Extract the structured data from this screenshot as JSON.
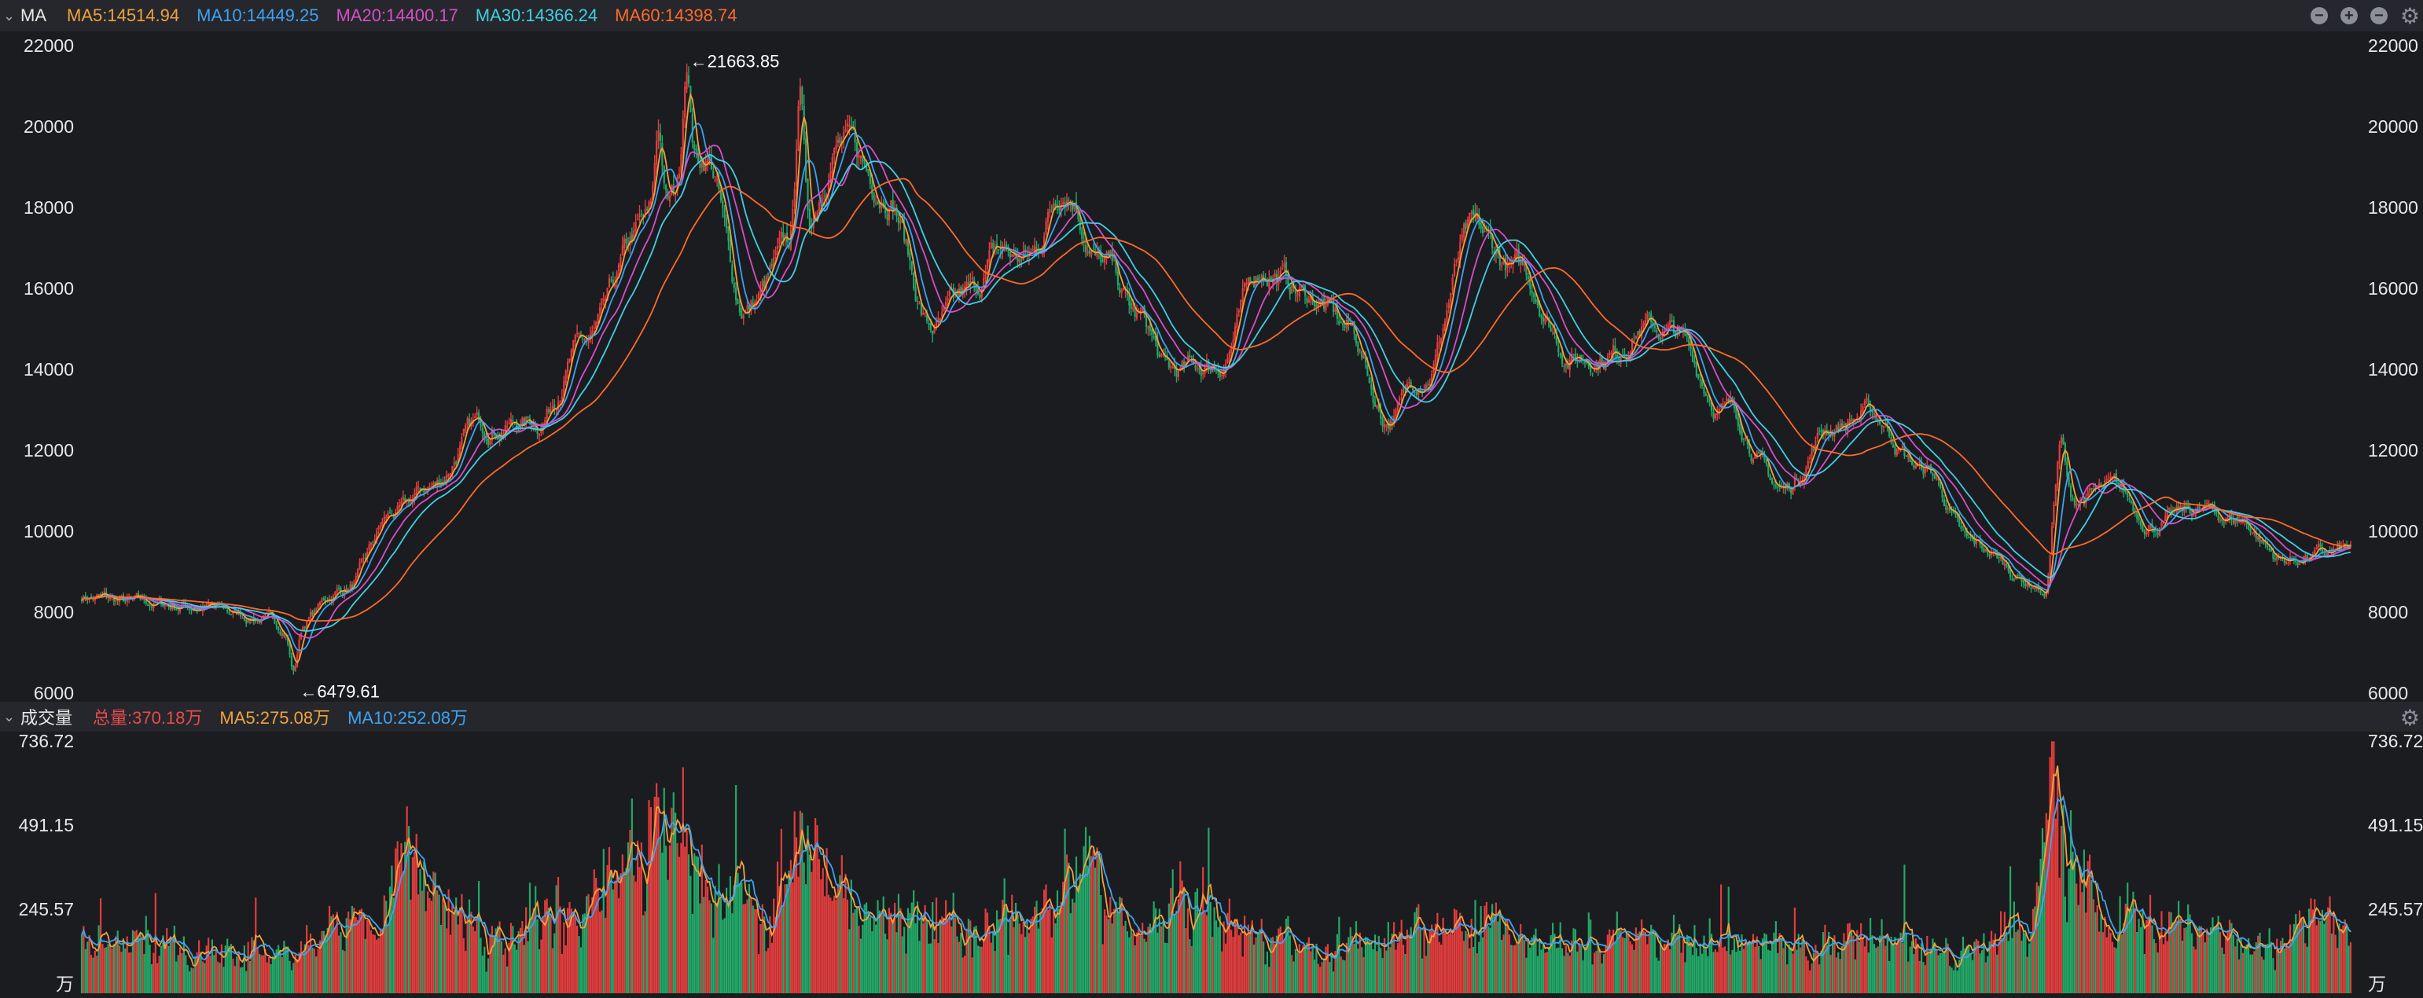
{
  "price_panel": {
    "title": "MA",
    "indicators": [
      {
        "label": "MA5:14514.94",
        "color": "#f0a23e"
      },
      {
        "label": "MA10:14449.25",
        "color": "#3ea2f0"
      },
      {
        "label": "MA20:14400.17",
        "color": "#d64fc4"
      },
      {
        "label": "MA30:14366.24",
        "color": "#3fd0e2"
      },
      {
        "label": "MA60:14398.74",
        "color": "#ff6a2a"
      }
    ],
    "max_label": "←21663.85",
    "min_label": "←6479.61"
  },
  "volume_panel": {
    "title": "成交量",
    "indicators": [
      {
        "label": "总量:370.18万",
        "color": "#e84b4b"
      },
      {
        "label": "MA5:275.08万",
        "color": "#f0a23e"
      },
      {
        "label": "MA10:252.08万",
        "color": "#3ea2f0"
      }
    ],
    "unit_label": "万"
  },
  "colors": {
    "up": "#e23d3d",
    "down": "#23a868",
    "axis_text": "#e8e8e8",
    "background": "#1b1c20",
    "header": "#25272c"
  },
  "chart_data": [
    {
      "type": "candlestick",
      "title": "MA",
      "y_ticks": [
        22000,
        20000,
        18000,
        16000,
        14000,
        12000,
        10000,
        8000,
        6000
      ],
      "ylim": [
        6000,
        22000
      ],
      "grid": false,
      "extremes": {
        "max": 21663.85,
        "min": 6479.61
      },
      "trend_anchors": [
        {
          "i": 0,
          "v": 8400
        },
        {
          "i": 30,
          "v": 8200
        },
        {
          "i": 60,
          "v": 8150
        },
        {
          "i": 90,
          "v": 7900
        },
        {
          "i": 110,
          "v": 7600
        },
        {
          "i": 140,
          "v": 8600
        },
        {
          "i": 165,
          "v": 10400
        },
        {
          "i": 185,
          "v": 11100
        },
        {
          "i": 210,
          "v": 12600
        },
        {
          "i": 240,
          "v": 12700
        },
        {
          "i": 265,
          "v": 14600
        },
        {
          "i": 300,
          "v": 17600
        },
        {
          "i": 330,
          "v": 19300
        },
        {
          "i": 350,
          "v": 15500
        },
        {
          "i": 380,
          "v": 17200
        },
        {
          "i": 400,
          "v": 19600
        },
        {
          "i": 425,
          "v": 18500
        },
        {
          "i": 450,
          "v": 15000
        },
        {
          "i": 470,
          "v": 15800
        },
        {
          "i": 485,
          "v": 16900
        },
        {
          "i": 500,
          "v": 16700
        },
        {
          "i": 520,
          "v": 18600
        },
        {
          "i": 540,
          "v": 16600
        },
        {
          "i": 560,
          "v": 15200
        },
        {
          "i": 575,
          "v": 13900
        },
        {
          "i": 600,
          "v": 14100
        },
        {
          "i": 625,
          "v": 16500
        },
        {
          "i": 650,
          "v": 15800
        },
        {
          "i": 670,
          "v": 15000
        },
        {
          "i": 690,
          "v": 12800
        },
        {
          "i": 710,
          "v": 13900
        },
        {
          "i": 735,
          "v": 17300
        },
        {
          "i": 760,
          "v": 16400
        },
        {
          "i": 790,
          "v": 14300
        },
        {
          "i": 810,
          "v": 14400
        },
        {
          "i": 825,
          "v": 15100
        },
        {
          "i": 840,
          "v": 14900
        },
        {
          "i": 870,
          "v": 13000
        },
        {
          "i": 900,
          "v": 11000
        },
        {
          "i": 925,
          "v": 12600
        },
        {
          "i": 945,
          "v": 12900
        },
        {
          "i": 975,
          "v": 11500
        },
        {
          "i": 1000,
          "v": 9600
        },
        {
          "i": 1035,
          "v": 8700
        },
        {
          "i": 1045,
          "v": 10700
        },
        {
          "i": 1075,
          "v": 11000
        },
        {
          "i": 1095,
          "v": 10200
        },
        {
          "i": 1120,
          "v": 10500
        },
        {
          "i": 1140,
          "v": 10300
        },
        {
          "i": 1165,
          "v": 9300
        },
        {
          "i": 1185,
          "v": 9400
        },
        {
          "i": 1200,
          "v": 9550
        }
      ],
      "trend_spikes": [
        {
          "i": 305,
          "v": 20200
        },
        {
          "i": 320,
          "v": 21663.85
        },
        {
          "i": 380,
          "v": 21300
        },
        {
          "i": 112,
          "v": 6479.61
        },
        {
          "i": 1038,
          "v": 8300
        },
        {
          "i": 1047,
          "v": 12500
        }
      ]
    },
    {
      "type": "bar",
      "title": "成交量",
      "unit": "万",
      "y_ticks": [
        736.72,
        491.15,
        245.57
      ],
      "ylim": [
        0,
        736.72
      ],
      "series": [
        {
          "name": "总量",
          "last": 370.18
        },
        {
          "name": "MA5",
          "last": 275.08
        },
        {
          "name": "MA10",
          "last": 252.08
        }
      ],
      "volume_anchors": [
        {
          "i": 0,
          "v": 150
        },
        {
          "i": 40,
          "v": 120
        },
        {
          "i": 100,
          "v": 110
        },
        {
          "i": 160,
          "v": 180
        },
        {
          "i": 170,
          "v": 380
        },
        {
          "i": 190,
          "v": 210
        },
        {
          "i": 230,
          "v": 150
        },
        {
          "i": 240,
          "v": 240
        },
        {
          "i": 260,
          "v": 200
        },
        {
          "i": 290,
          "v": 400
        },
        {
          "i": 310,
          "v": 380
        },
        {
          "i": 340,
          "v": 250
        },
        {
          "i": 360,
          "v": 220
        },
        {
          "i": 385,
          "v": 380
        },
        {
          "i": 400,
          "v": 250
        },
        {
          "i": 450,
          "v": 200
        },
        {
          "i": 470,
          "v": 170
        },
        {
          "i": 500,
          "v": 220
        },
        {
          "i": 520,
          "v": 350
        },
        {
          "i": 560,
          "v": 160
        },
        {
          "i": 585,
          "v": 250
        },
        {
          "i": 610,
          "v": 180
        },
        {
          "i": 650,
          "v": 120
        },
        {
          "i": 700,
          "v": 150
        },
        {
          "i": 740,
          "v": 210
        },
        {
          "i": 780,
          "v": 130
        },
        {
          "i": 840,
          "v": 160
        },
        {
          "i": 900,
          "v": 120
        },
        {
          "i": 950,
          "v": 150
        },
        {
          "i": 1000,
          "v": 110
        },
        {
          "i": 1030,
          "v": 200
        },
        {
          "i": 1042,
          "v": 480
        },
        {
          "i": 1060,
          "v": 320
        },
        {
          "i": 1080,
          "v": 240
        },
        {
          "i": 1110,
          "v": 170
        },
        {
          "i": 1150,
          "v": 130
        },
        {
          "i": 1185,
          "v": 200
        },
        {
          "i": 1200,
          "v": 150
        }
      ]
    }
  ]
}
